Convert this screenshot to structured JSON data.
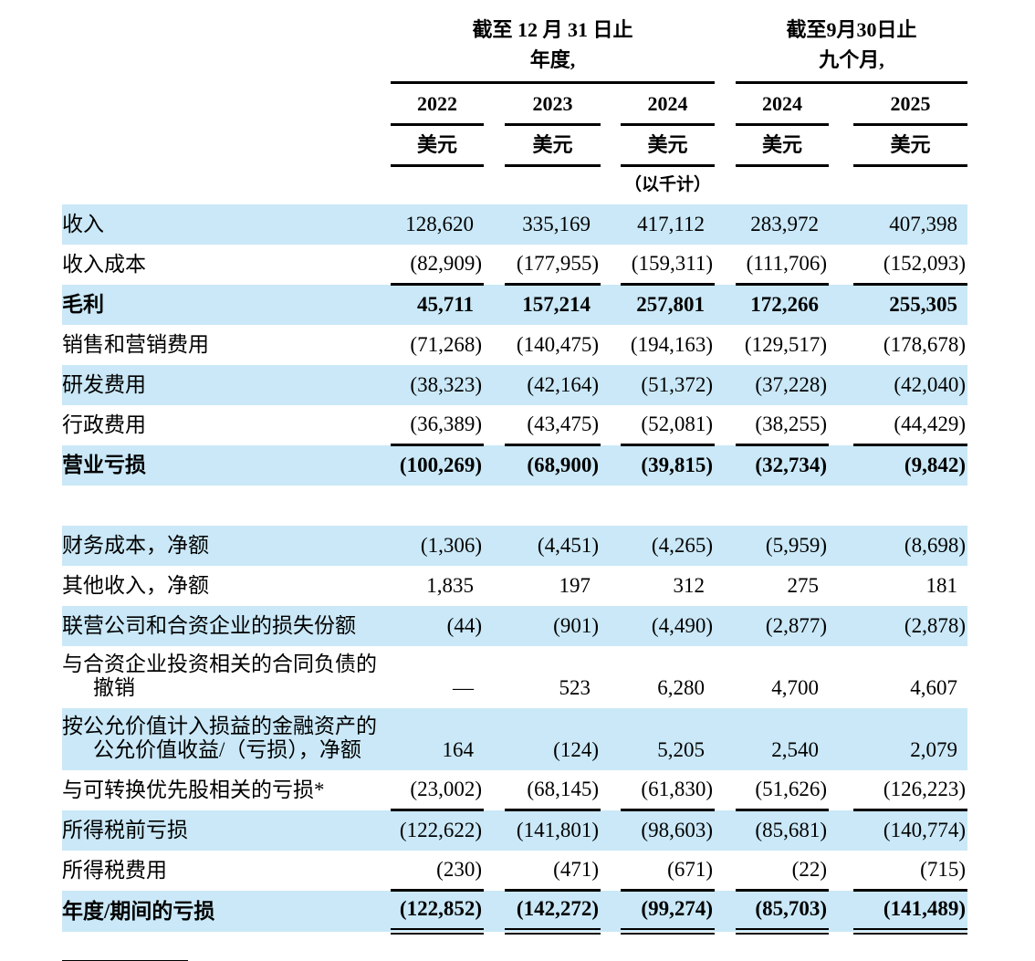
{
  "table": {
    "col_groups": [
      {
        "title_line1": "截至 12 月 31 日止",
        "title_line2": "年度,"
      },
      {
        "title_line1": "截至9月30日止",
        "title_line2": "九个月,"
      }
    ],
    "years": [
      "2022",
      "2023",
      "2024",
      "2024",
      "2025"
    ],
    "currency_labels": [
      "美元",
      "美元",
      "美元",
      "美元",
      "美元"
    ],
    "unit_note": "（以千计）",
    "colors": {
      "row_shade": "#cae8f7",
      "rule": "#000000",
      "text": "#000000"
    },
    "rows": [
      {
        "label": "收入",
        "values": [
          "128,620",
          "335,169",
          "417,112",
          "283,972",
          "407,398"
        ],
        "shade": true
      },
      {
        "label": "收入成本",
        "values": [
          "(82,909)",
          "(177,955)",
          "(159,311)",
          "(111,706)",
          "(152,093)"
        ],
        "underline": "single"
      },
      {
        "label": "毛利",
        "values": [
          "45,711",
          "157,214",
          "257,801",
          "172,266",
          "255,305"
        ],
        "bold": true,
        "shade": true
      },
      {
        "label": "销售和营销费用",
        "values": [
          "(71,268)",
          "(140,475)",
          "(194,163)",
          "(129,517)",
          "(178,678)"
        ]
      },
      {
        "label": "研发费用",
        "values": [
          "(38,323)",
          "(42,164)",
          "(51,372)",
          "(37,228)",
          "(42,040)"
        ],
        "shade": true
      },
      {
        "label": "行政费用",
        "values": [
          "(36,389)",
          "(43,475)",
          "(52,081)",
          "(38,255)",
          "(44,429)"
        ],
        "underline": "single"
      },
      {
        "label": "营业亏损",
        "values": [
          "(100,269)",
          "(68,900)",
          "(39,815)",
          "(32,734)",
          "(9,842)"
        ],
        "bold": true,
        "shade": true
      },
      {
        "spacer": true
      },
      {
        "label": "财务成本，净额",
        "values": [
          "(1,306)",
          "(4,451)",
          "(4,265)",
          "(5,959)",
          "(8,698)"
        ],
        "shade": true
      },
      {
        "label": "其他收入，净额",
        "values": [
          "1,835",
          "197",
          "312",
          "275",
          "181"
        ]
      },
      {
        "label": "联营公司和合资企业的损失份额",
        "values": [
          "(44)",
          "(901)",
          "(4,490)",
          "(2,877)",
          "(2,878)"
        ],
        "shade": true
      },
      {
        "label": "与合资企业投资相关的合同负债的",
        "label2": "撤销",
        "values": [
          "—",
          "523",
          "6,280",
          "4,700",
          "4,607"
        ]
      },
      {
        "label": "按公允价值计入损益的金融资产的",
        "label2": "公允价值收益/（亏损），净额",
        "values": [
          "164",
          "(124)",
          "5,205",
          "2,540",
          "2,079"
        ],
        "shade": true
      },
      {
        "label": "与可转换优先股相关的亏损*",
        "values": [
          "(23,002)",
          "(68,145)",
          "(61,830)",
          "(51,626)",
          "(126,223)"
        ],
        "underline": "single"
      },
      {
        "label": "所得税前亏损",
        "values": [
          "(122,622)",
          "(141,801)",
          "(98,603)",
          "(85,681)",
          "(140,774)"
        ],
        "shade": true
      },
      {
        "label": "所得税费用",
        "values": [
          "(230)",
          "(471)",
          "(671)",
          "(22)",
          "(715)"
        ],
        "underline": "single"
      },
      {
        "label": "年度/期间的亏损",
        "values": [
          "(122,852)",
          "(142,272)",
          "(99,274)",
          "(85,703)",
          "(141,489)"
        ],
        "bold": true,
        "shade": true,
        "underline": "double",
        "last": true
      }
    ]
  }
}
